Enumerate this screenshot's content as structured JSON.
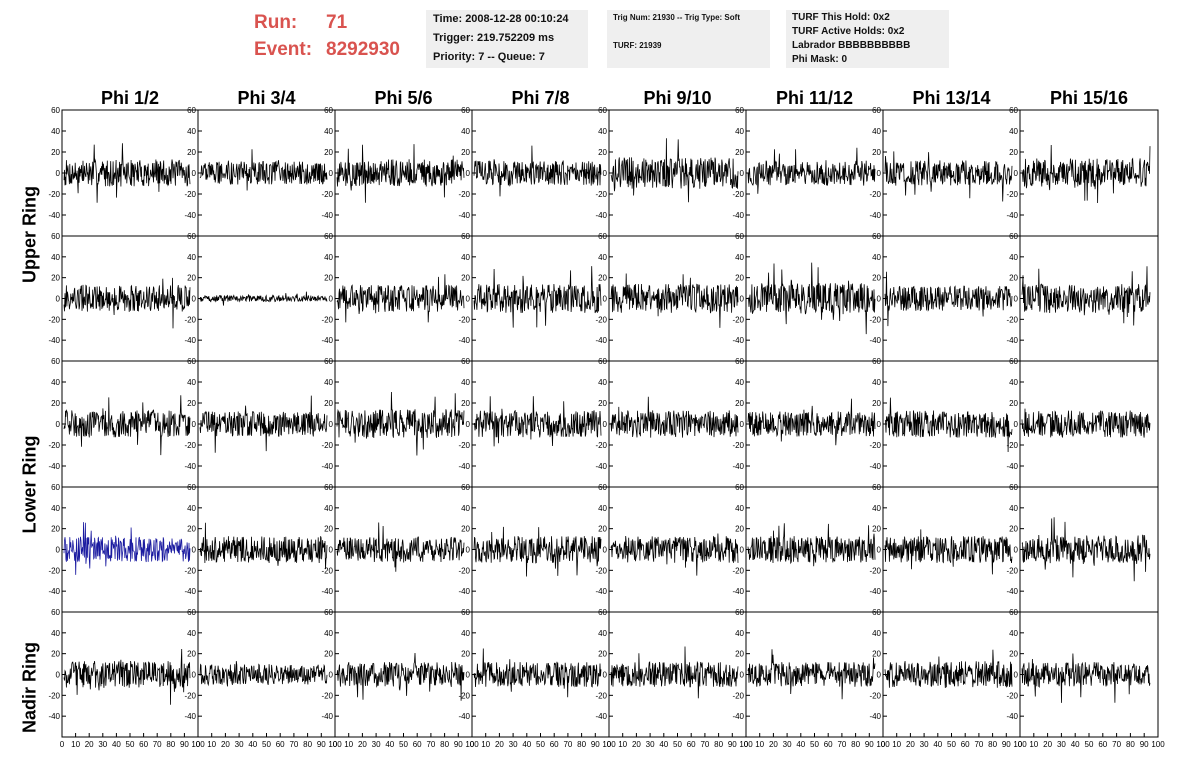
{
  "header": {
    "run_label": "Run:",
    "run_value": "71",
    "event_label": "Event:",
    "event_value": "8292930",
    "box1": [
      "Time: 2008-12-28 00:10:24",
      "Trigger: 219.752209 ms",
      "Priority: 7 -- Queue: 7"
    ],
    "box2_line1": "Trig Num: 21930 -- Trig Type: Soft",
    "box2_line2": "TURF: 21939",
    "box3": [
      "TURF This Hold: 0x2",
      "TURF Active Holds: 0x2",
      "Labrador BBBBBBBBBB",
      "Phi Mask: 0"
    ]
  },
  "columns": [
    "Phi 1/2",
    "Phi 3/4",
    "Phi 5/6",
    "Phi 7/8",
    "Phi 9/10",
    "Phi 11/12",
    "Phi 13/14",
    "Phi 15/16"
  ],
  "ring_labels": [
    {
      "label": "Upper Ring"
    },
    {
      "label": "Lower Ring"
    },
    {
      "label": "Nadir Ring"
    }
  ],
  "chart_data": {
    "type": "line",
    "rows": 5,
    "cols": 8,
    "ylim": [
      -60,
      60
    ],
    "yticks": [
      -40,
      -20,
      0,
      20,
      40,
      60
    ],
    "xlim": [
      0,
      100
    ],
    "xticks": [
      0,
      10,
      20,
      30,
      40,
      50,
      60,
      70,
      80,
      90,
      100
    ],
    "trace_color": "#000000",
    "highlight_color": "#1a1aa0",
    "highlight_panel": [
      3,
      0
    ],
    "samples_per_trace": 260,
    "panels": [
      {
        "row": 0,
        "col": 0,
        "amp": 13
      },
      {
        "row": 0,
        "col": 1,
        "amp": 11
      },
      {
        "row": 0,
        "col": 2,
        "amp": 13
      },
      {
        "row": 0,
        "col": 3,
        "amp": 12
      },
      {
        "row": 0,
        "col": 4,
        "amp": 15
      },
      {
        "row": 0,
        "col": 5,
        "amp": 12
      },
      {
        "row": 0,
        "col": 6,
        "amp": 12
      },
      {
        "row": 0,
        "col": 7,
        "amp": 14
      },
      {
        "row": 1,
        "col": 0,
        "amp": 13
      },
      {
        "row": 1,
        "col": 1,
        "amp": 3
      },
      {
        "row": 1,
        "col": 2,
        "amp": 13
      },
      {
        "row": 1,
        "col": 3,
        "amp": 14
      },
      {
        "row": 1,
        "col": 4,
        "amp": 14
      },
      {
        "row": 1,
        "col": 5,
        "amp": 15
      },
      {
        "row": 1,
        "col": 6,
        "amp": 12
      },
      {
        "row": 1,
        "col": 7,
        "amp": 14
      },
      {
        "row": 2,
        "col": 0,
        "amp": 13
      },
      {
        "row": 2,
        "col": 1,
        "amp": 12
      },
      {
        "row": 2,
        "col": 2,
        "amp": 14
      },
      {
        "row": 2,
        "col": 3,
        "amp": 13
      },
      {
        "row": 2,
        "col": 4,
        "amp": 13
      },
      {
        "row": 2,
        "col": 5,
        "amp": 12
      },
      {
        "row": 2,
        "col": 6,
        "amp": 13
      },
      {
        "row": 2,
        "col": 7,
        "amp": 13
      },
      {
        "row": 3,
        "col": 0,
        "amp": 12
      },
      {
        "row": 3,
        "col": 1,
        "amp": 13
      },
      {
        "row": 3,
        "col": 2,
        "amp": 12
      },
      {
        "row": 3,
        "col": 3,
        "amp": 13
      },
      {
        "row": 3,
        "col": 4,
        "amp": 13
      },
      {
        "row": 3,
        "col": 5,
        "amp": 13
      },
      {
        "row": 3,
        "col": 6,
        "amp": 13
      },
      {
        "row": 3,
        "col": 7,
        "amp": 14
      },
      {
        "row": 4,
        "col": 0,
        "amp": 13
      },
      {
        "row": 4,
        "col": 1,
        "amp": 10
      },
      {
        "row": 4,
        "col": 2,
        "amp": 12
      },
      {
        "row": 4,
        "col": 3,
        "amp": 12
      },
      {
        "row": 4,
        "col": 4,
        "amp": 12
      },
      {
        "row": 4,
        "col": 5,
        "amp": 12
      },
      {
        "row": 4,
        "col": 6,
        "amp": 13
      },
      {
        "row": 4,
        "col": 7,
        "amp": 12
      }
    ]
  }
}
